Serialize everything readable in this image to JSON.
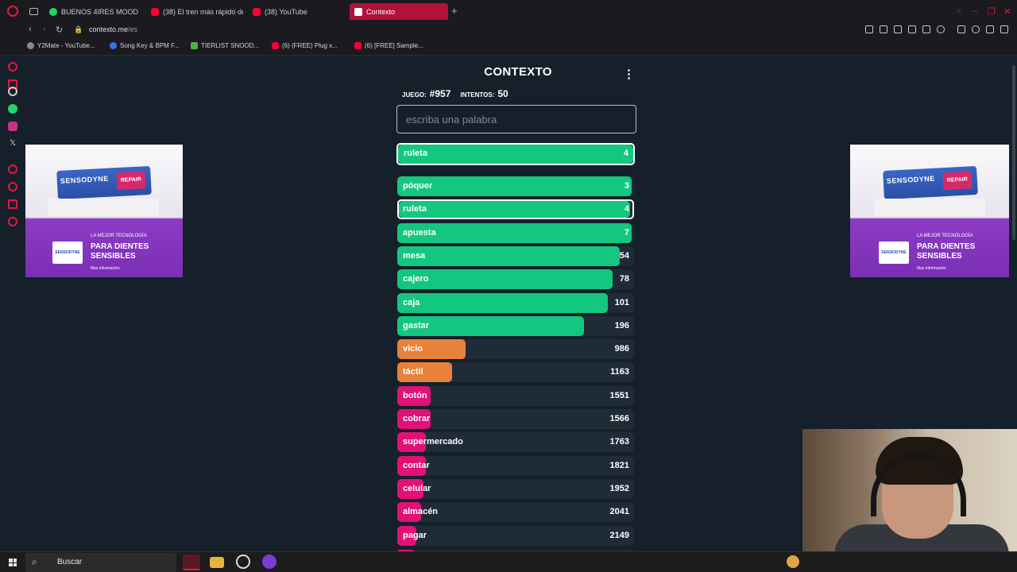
{
  "browser": {
    "tabs": [
      {
        "label": "BUENOS 4IRES MOOD",
        "favicon": "spotify-icon",
        "active": false
      },
      {
        "label": "(38) El tren más rápido de",
        "favicon": "youtube-icon",
        "active": false
      },
      {
        "label": "(38) YouTube",
        "favicon": "youtube-icon",
        "active": false
      },
      {
        "label": "Contexto",
        "favicon": "contexto-icon",
        "active": true
      }
    ],
    "new_tab": "+",
    "url_host": "contexto.me",
    "url_path": "/es",
    "bookmarks": [
      {
        "label": "Y2Mate - YouTube..."
      },
      {
        "label": "Song Key & BPM F..."
      },
      {
        "label": "TIERLIST SNOOD..."
      },
      {
        "label": "(6) (FREE) Plug x..."
      },
      {
        "label": "(6) [FREE] Sample..."
      }
    ]
  },
  "game": {
    "title": "CONTEXTO",
    "menu_glyph": "⋮",
    "game_label": "JUEGO:",
    "game_number": "#957",
    "attempts_label": "INTENTOS:",
    "attempts_value": "50",
    "input_placeholder": "escriba una palabra",
    "last_guess": {
      "word": "ruleta",
      "distance": 4
    },
    "guesses": [
      {
        "word": "póquer",
        "distance": 3,
        "color": "green",
        "fill": 0.99,
        "highlight": false
      },
      {
        "word": "ruleta",
        "distance": 4,
        "color": "green",
        "fill": 0.99,
        "highlight": true
      },
      {
        "word": "apuesta",
        "distance": 7,
        "color": "green",
        "fill": 0.99,
        "highlight": false
      },
      {
        "word": "mesa",
        "distance": 54,
        "color": "green",
        "fill": 0.94,
        "highlight": false
      },
      {
        "word": "cajero",
        "distance": 78,
        "color": "green",
        "fill": 0.91,
        "highlight": false
      },
      {
        "word": "caja",
        "distance": 101,
        "color": "green",
        "fill": 0.89,
        "highlight": false
      },
      {
        "word": "gastar",
        "distance": 196,
        "color": "green",
        "fill": 0.79,
        "highlight": false
      },
      {
        "word": "vicio",
        "distance": 986,
        "color": "orange",
        "fill": 0.29,
        "highlight": false
      },
      {
        "word": "táctil",
        "distance": 1163,
        "color": "orange",
        "fill": 0.23,
        "highlight": false
      },
      {
        "word": "botón",
        "distance": 1551,
        "color": "pink",
        "fill": 0.14,
        "highlight": false
      },
      {
        "word": "cobrar",
        "distance": 1566,
        "color": "pink",
        "fill": 0.14,
        "highlight": false
      },
      {
        "word": "supermercado",
        "distance": 1763,
        "color": "pink",
        "fill": 0.12,
        "highlight": false
      },
      {
        "word": "contar",
        "distance": 1821,
        "color": "pink",
        "fill": 0.12,
        "highlight": false
      },
      {
        "word": "celular",
        "distance": 1952,
        "color": "pink",
        "fill": 0.11,
        "highlight": false
      },
      {
        "word": "almacén",
        "distance": 2041,
        "color": "pink",
        "fill": 0.1,
        "highlight": false
      },
      {
        "word": "pagar",
        "distance": 2149,
        "color": "pink",
        "fill": 0.08,
        "highlight": false
      }
    ]
  },
  "ads": {
    "brand": "SENSODYNE",
    "badge": "REPAIR",
    "tagline_top": "LA MEJOR TECNOLOGÍA",
    "tagline_main": "PARA DIENTES SENSIBLES",
    "more": "Mas información"
  },
  "taskbar": {
    "search_placeholder": "Buscar"
  },
  "colors": {
    "green": "#14c77f",
    "orange": "#e8813a",
    "pink": "#e01177",
    "background": "#15202b",
    "active_tab": "#b0123b"
  }
}
